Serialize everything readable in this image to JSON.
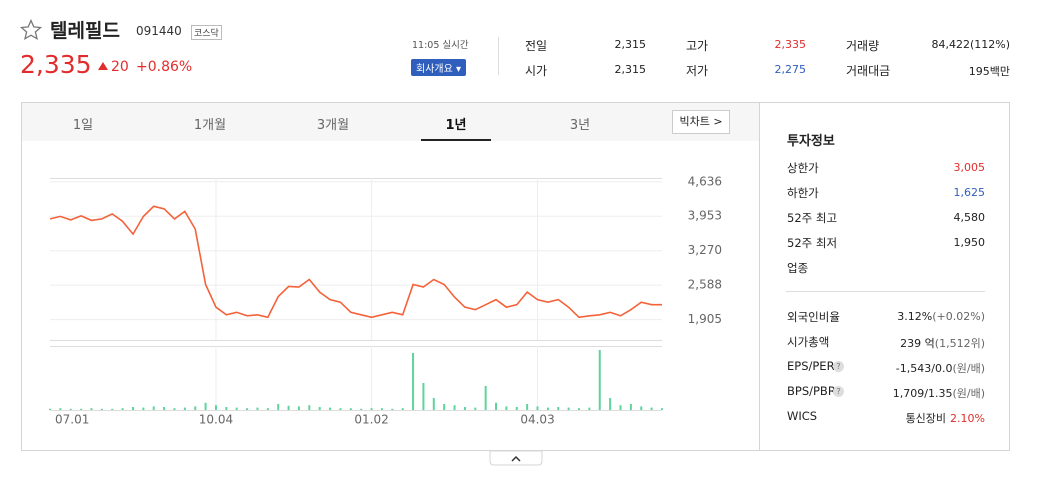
{
  "header": {
    "name": "텔레필드",
    "code": "091440",
    "market": "코스닥",
    "price": "2,335",
    "change": "20",
    "rate": "+0.86%",
    "time": "11:05 실시간",
    "company_button": "회사개요"
  },
  "quote": [
    {
      "label": "전일",
      "value": "2,315"
    },
    {
      "label": "고가",
      "value": "2,335"
    },
    {
      "label": "거래량",
      "value": "84,422(112%)"
    },
    {
      "label": "시가",
      "value": "2,315"
    },
    {
      "label": "저가",
      "value": "2,275"
    },
    {
      "label": "거래대금",
      "value": "195백만"
    }
  ],
  "tabs": [
    "1일",
    "1개월",
    "3개월",
    "1년",
    "3년"
  ],
  "active_tab": 3,
  "big_chart": "빅차트",
  "chart_data": {
    "type": "line",
    "categories": [
      "07.01",
      null,
      null,
      null,
      null,
      null,
      null,
      null,
      null,
      null,
      null,
      null,
      null,
      null,
      null,
      null,
      "10.04",
      null,
      null,
      null,
      null,
      null,
      null,
      null,
      null,
      null,
      null,
      null,
      null,
      null,
      null,
      "01.02",
      null,
      null,
      null,
      null,
      null,
      null,
      null,
      null,
      null,
      null,
      null,
      null,
      null,
      null,
      null,
      "04.03",
      null,
      null,
      null,
      null,
      null,
      null,
      null,
      null,
      null,
      null,
      null,
      null
    ],
    "ylim": [
      1500,
      4830
    ],
    "yticks": [
      {
        "value": 4636,
        "label": "4,636"
      },
      {
        "value": 3953,
        "label": "3,953"
      },
      {
        "value": 3270,
        "label": "3,270"
      },
      {
        "value": 2588,
        "label": "2,588"
      },
      {
        "value": 1905,
        "label": "1,905"
      }
    ],
    "grid": true,
    "series": [
      {
        "color": "#f4623a",
        "values": [
          3900,
          3950,
          3880,
          3960,
          3870,
          3900,
          4000,
          3850,
          3600,
          3950,
          4150,
          4100,
          3900,
          4050,
          3700,
          2600,
          2150,
          2000,
          2050,
          1980,
          2000,
          1950,
          2360,
          2560,
          2550,
          2700,
          2450,
          2300,
          2250,
          2050,
          2000,
          1950,
          2000,
          2050,
          2000,
          2600,
          2550,
          2700,
          2600,
          2350,
          2150,
          2100,
          2200,
          2300,
          2150,
          2200,
          2450,
          2300,
          2250,
          2300,
          2150,
          1950,
          1980,
          2000,
          2050,
          1980,
          2100,
          2250,
          2200,
          2200
        ]
      },
      {
        "color": "#5fd39a",
        "values": [
          2,
          3,
          2,
          2,
          3,
          2,
          2,
          3,
          5,
          4,
          6,
          5,
          3,
          4,
          6,
          12,
          8,
          5,
          4,
          3,
          4,
          3,
          10,
          7,
          6,
          8,
          5,
          4,
          3,
          3,
          2,
          3,
          3,
          2,
          3,
          95,
          45,
          20,
          10,
          8,
          5,
          4,
          40,
          12,
          6,
          5,
          10,
          6,
          4,
          5,
          4,
          3,
          4,
          100,
          20,
          8,
          10,
          6,
          4,
          3
        ]
      }
    ]
  },
  "invest": {
    "title": "투자정보",
    "rows1": [
      {
        "label": "상한가",
        "value": "3,005"
      },
      {
        "label": "하한가",
        "value": "1,625"
      },
      {
        "label": "52주 최고",
        "value": "4,580"
      },
      {
        "label": "52주 최저",
        "value": "1,950"
      },
      {
        "label": "업종"
      }
    ],
    "rows2": [
      {
        "label": "외국인비율",
        "value": "3.12%",
        "extra": "(+0.02%)"
      },
      {
        "label": "시가총액",
        "value": "239 억",
        "extra": "(1,512위)"
      },
      {
        "label": "EPS/PER",
        "value": "-1,543/0.0",
        "extra": "(원/배)"
      },
      {
        "label": "BPS/PBR",
        "value": "1,709/1.35",
        "extra": "(원/배)"
      },
      {
        "label": "WICS",
        "value": "통신장비",
        "extra": "2.10%"
      }
    ]
  }
}
